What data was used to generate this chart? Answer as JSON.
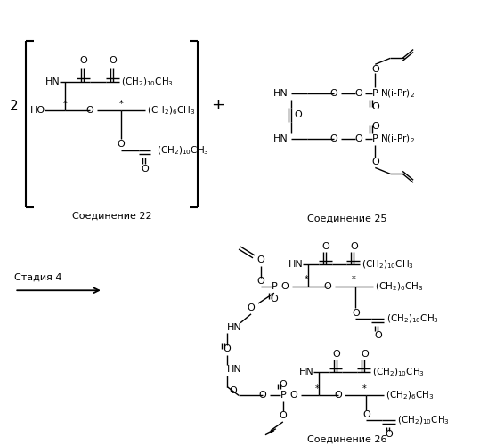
{
  "bg": "#ffffff",
  "fw": 5.66,
  "fh": 5.0,
  "dpi": 100,
  "labels": {
    "comp22": "Соединение 22",
    "comp25": "Соединение 25",
    "comp26": "Соединение 26",
    "stage": "Стадия 4",
    "coeff": "2",
    "plus": "+"
  }
}
